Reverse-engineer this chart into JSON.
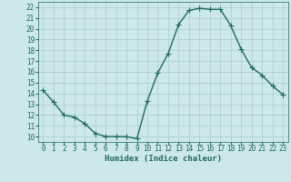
{
  "x": [
    0,
    1,
    2,
    3,
    4,
    5,
    6,
    7,
    8,
    9,
    10,
    11,
    12,
    13,
    14,
    15,
    16,
    17,
    18,
    19,
    20,
    21,
    22,
    23
  ],
  "y": [
    14.3,
    13.2,
    12.0,
    11.8,
    11.2,
    10.3,
    10.0,
    10.0,
    10.0,
    9.8,
    13.3,
    15.9,
    17.7,
    20.4,
    21.7,
    21.9,
    21.8,
    21.8,
    20.3,
    18.1,
    16.4,
    15.7,
    14.7,
    13.9
  ],
  "line_color": "#1e6b5e",
  "marker": "+",
  "marker_size": 4,
  "marker_linewidth": 0.8,
  "bg_color": "#cce8e8",
  "grid_color": "#aacece",
  "xlabel": "Humidex (Indice chaleur)",
  "ylim": [
    9.5,
    22.5
  ],
  "xlim": [
    -0.5,
    23.5
  ],
  "yticks": [
    10,
    11,
    12,
    13,
    14,
    15,
    16,
    17,
    18,
    19,
    20,
    21,
    22
  ],
  "xticks": [
    0,
    1,
    2,
    3,
    4,
    5,
    6,
    7,
    8,
    9,
    10,
    11,
    12,
    13,
    14,
    15,
    16,
    17,
    18,
    19,
    20,
    21,
    22,
    23
  ],
  "tick_fontsize": 5.5,
  "label_fontsize": 6.5,
  "line_width": 1.0
}
